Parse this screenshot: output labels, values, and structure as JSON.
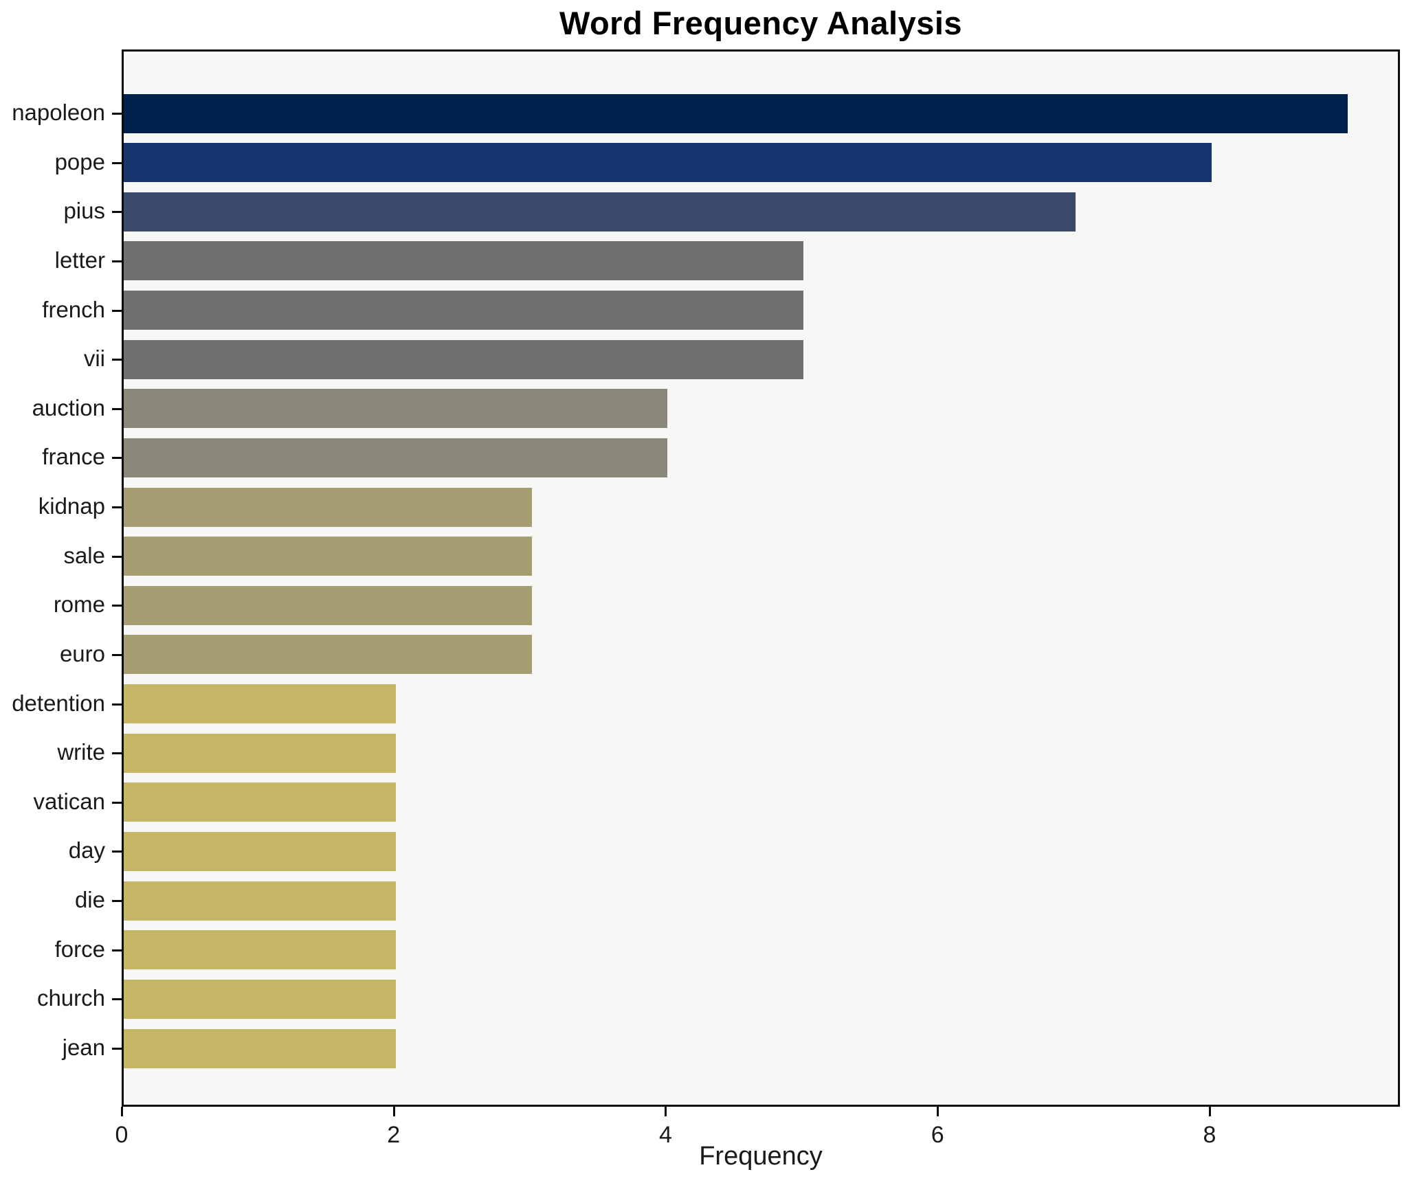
{
  "title": "Word Frequency Analysis",
  "chart_data": {
    "type": "bar",
    "orientation": "horizontal",
    "title": "Word Frequency Analysis",
    "xlabel": "Frequency",
    "ylabel": "",
    "categories": [
      "napoleon",
      "pope",
      "pius",
      "letter",
      "french",
      "vii",
      "auction",
      "france",
      "kidnap",
      "sale",
      "rome",
      "euro",
      "detention",
      "write",
      "vatican",
      "day",
      "die",
      "force",
      "church",
      "jean"
    ],
    "values": [
      9,
      8,
      7,
      5,
      5,
      5,
      4,
      4,
      3,
      3,
      3,
      3,
      2,
      2,
      2,
      2,
      2,
      2,
      2,
      2
    ],
    "bar_colors": [
      "#02224e",
      "#16356f",
      "#3b4a6b",
      "#6e7071",
      "#6e7071",
      "#6e7071",
      "#8a8878",
      "#8a8878",
      "#a69e72",
      "#a69e72",
      "#a69e72",
      "#a69e72",
      "#c5b566",
      "#c5b566",
      "#c5b566",
      "#c5b566",
      "#c5b566",
      "#c5b566",
      "#c5b566",
      "#c5b566"
    ],
    "xlim": [
      0,
      9.4
    ],
    "x_ticks": [
      0,
      2,
      4,
      6,
      8
    ],
    "grid": false,
    "legend_position": "none",
    "plot_bg": "#f7f7f5",
    "figure_bg": "#ffffff",
    "spine_color": "#0b0b0b"
  }
}
